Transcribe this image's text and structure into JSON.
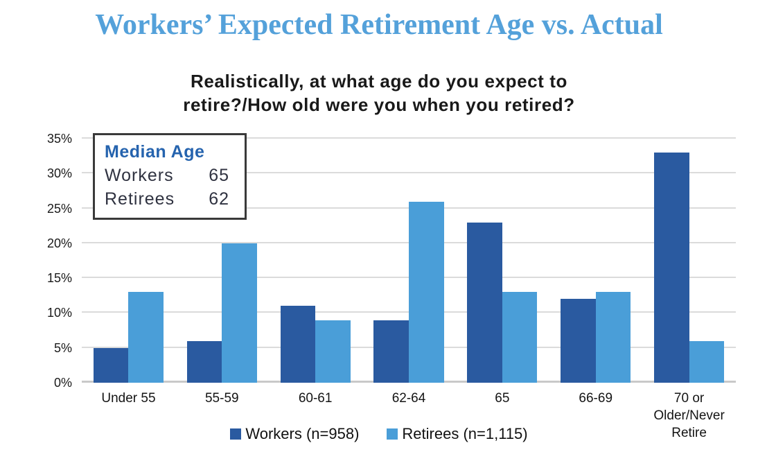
{
  "page": {
    "title": "Workers’ Expected Retirement Age vs. Actual"
  },
  "question": {
    "line1": "Realistically, at what age do you expect to",
    "line2": "retire?/How old were you when you retired?"
  },
  "median_box": {
    "title": "Median Age",
    "rows": [
      {
        "label": "Workers",
        "value": "65"
      },
      {
        "label": "Retirees",
        "value": "62"
      }
    ]
  },
  "legend": {
    "items": [
      {
        "label": "Workers (n=958)",
        "color": "#2a5aa0"
      },
      {
        "label": "Retirees (n=1,115)",
        "color": "#4a9ed8"
      }
    ]
  },
  "chart_data": {
    "type": "bar",
    "title": "Realistically, at what age do you expect to retire?/How old were you when you retired?",
    "categories": [
      "Under 55",
      "55-59",
      "60-61",
      "62-64",
      "65",
      "66-69",
      "70 or Older/Never Retire"
    ],
    "category_lines": [
      [
        "Under 55"
      ],
      [
        "55-59"
      ],
      [
        "60-61"
      ],
      [
        "62-64"
      ],
      [
        "65"
      ],
      [
        "66-69"
      ],
      [
        "70 or",
        "Older/Never",
        "Retire"
      ]
    ],
    "series": [
      {
        "name": "Workers (n=958)",
        "key": "workers",
        "color": "#2a5aa0",
        "values": [
          5,
          6,
          11,
          9,
          23,
          12,
          33
        ]
      },
      {
        "name": "Retirees (n=1,115)",
        "key": "retirees",
        "color": "#4a9ed8",
        "values": [
          13,
          20,
          9,
          26,
          13,
          13,
          6
        ]
      }
    ],
    "xlabel": "",
    "ylabel": "",
    "ylim": [
      0,
      35
    ],
    "ytick_step": 5,
    "ytick_suffix": "%",
    "grid": true,
    "legend_position": "bottom",
    "annotation": "Median Age: Workers 65, Retirees 62"
  },
  "colors": {
    "title_blue": "#54a1da",
    "median_title_blue": "#2563ae",
    "gridline": "#dbdbdb",
    "axis_line": "#c9c9c9"
  }
}
